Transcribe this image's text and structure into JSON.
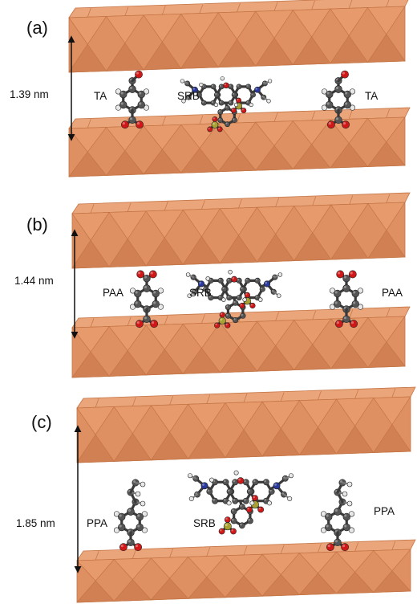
{
  "panels": [
    {
      "id": "a",
      "label": "(a)",
      "spacing": "1.39 nm",
      "left_molecule": "TA",
      "center_molecule": "SRB",
      "right_molecule": "TA"
    },
    {
      "id": "b",
      "label": "(b)",
      "spacing": "1.44 nm",
      "left_molecule": "PAA",
      "center_molecule": "SRB",
      "right_molecule": "PAA"
    },
    {
      "id": "c",
      "label": "(c)",
      "spacing": "1.85 nm",
      "left_molecule": "PPA",
      "center_molecule": "SRB",
      "right_molecule": "PPA"
    }
  ],
  "colors": {
    "layer_face": "#de9062",
    "layer_top": "#eaa57a",
    "layer_edge": "#c47444",
    "carbon": "#555555",
    "hydrogen": "#e6e6e6",
    "oxygen": "#d01818",
    "nitrogen": "#2a3a9c",
    "sulfur": "#a8a030"
  }
}
